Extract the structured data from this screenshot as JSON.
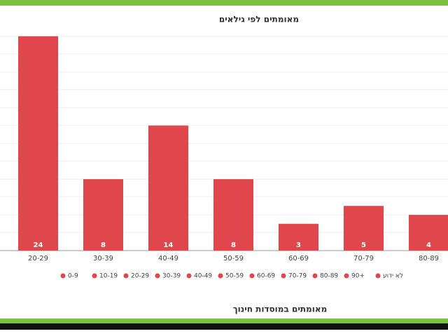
{
  "chart_data": {
    "type": "bar",
    "title": "מאומתים לפי גילאים",
    "categories": [
      "20-29",
      "30-39",
      "40-49",
      "50-59",
      "60-69",
      "70-79",
      "80-89"
    ],
    "values": [
      24,
      8,
      14,
      8,
      3,
      5,
      4
    ],
    "color": "#e0474c",
    "ylim": [
      0,
      25
    ],
    "legend": [
      "0-9",
      "10-19",
      "20-29",
      "30-39",
      "40-49",
      "50-59",
      "60-69",
      "70-79",
      "80-89",
      "90+",
      "לא ידוע"
    ],
    "footer": "מאומתים במוסדות חינוך"
  }
}
